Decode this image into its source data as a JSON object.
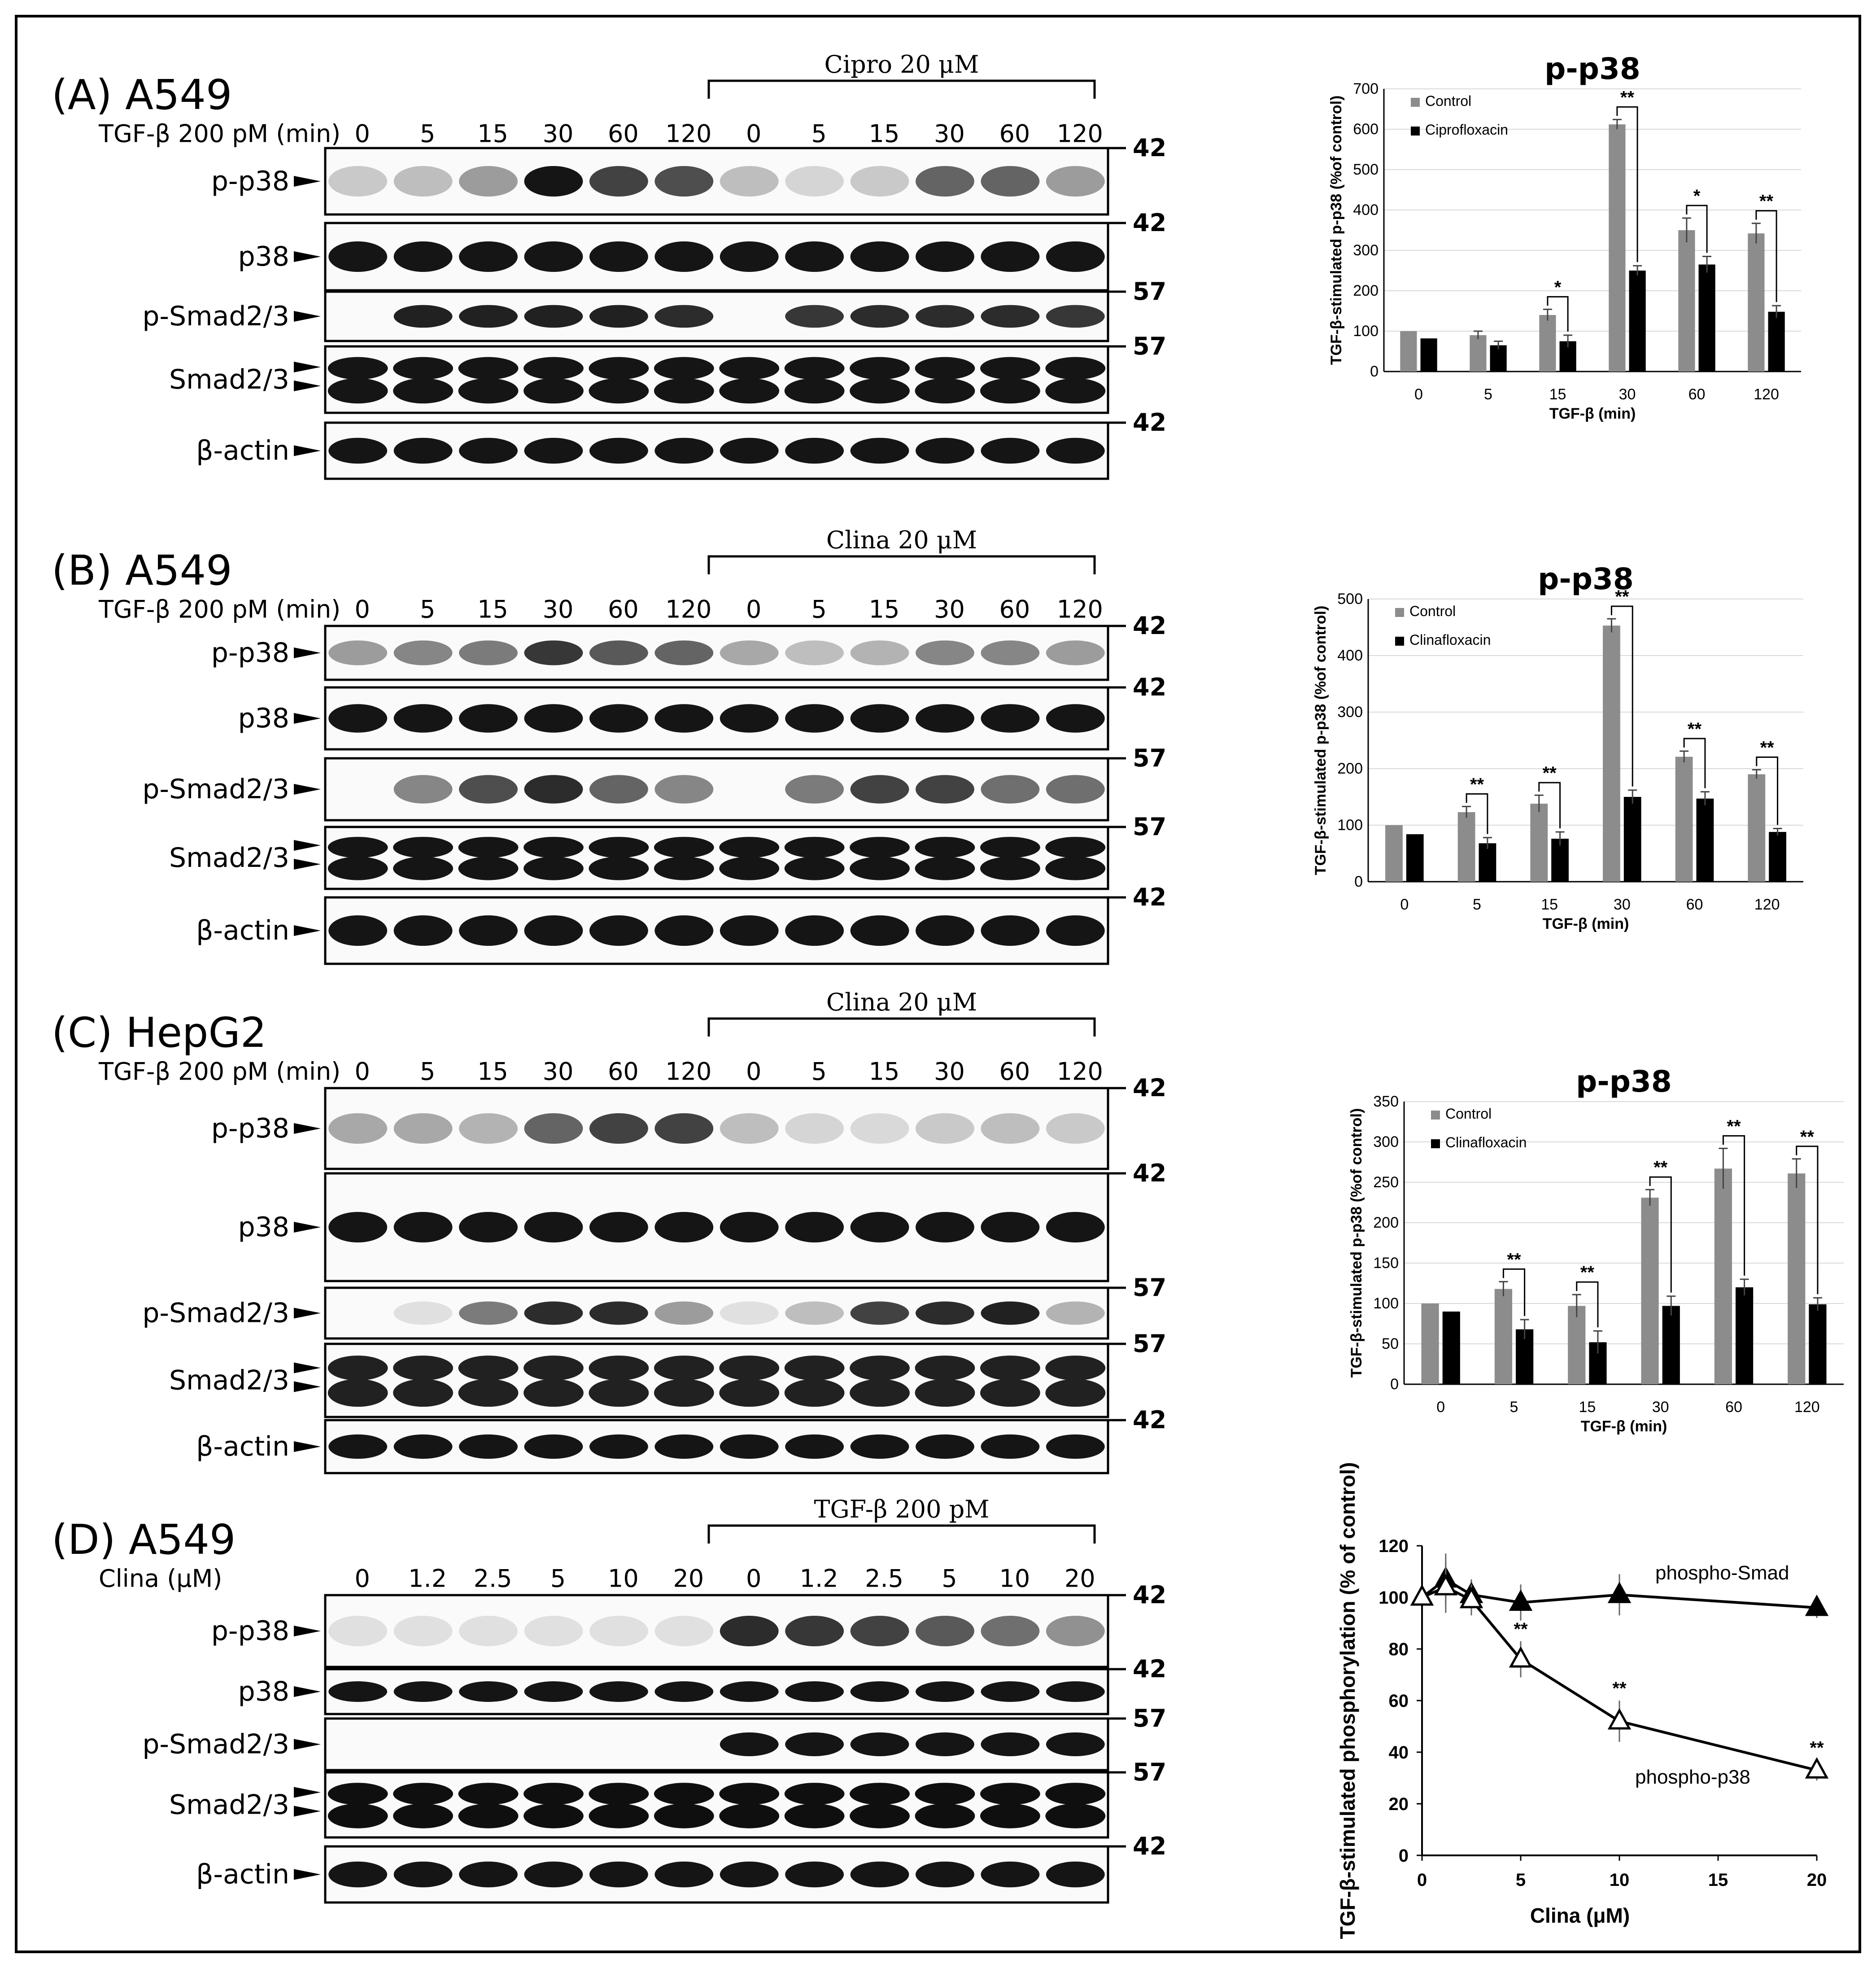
{
  "panels": [
    {
      "label": "(A) A549",
      "treatment_bracket": "Cipro 20 μM",
      "row_header": "TGF-β 200 pM (min)",
      "lanes": [
        "0",
        "5",
        "15",
        "30",
        "60",
        "120",
        "0",
        "5",
        "15",
        "30",
        "60",
        "120"
      ],
      "blots": [
        {
          "label": "p-p38",
          "mw": "42",
          "intensity": [
            0.15,
            0.2,
            0.35,
            0.95,
            0.75,
            0.7,
            0.2,
            0.1,
            0.15,
            0.6,
            0.6,
            0.35
          ]
        },
        {
          "label": "p38",
          "mw": "42",
          "intensity": [
            0.95,
            0.95,
            0.95,
            0.95,
            0.95,
            0.95,
            0.95,
            0.95,
            0.95,
            0.95,
            0.95,
            0.95
          ]
        },
        {
          "label": "p-Smad2/3",
          "mw": "57",
          "intensity": [
            0.0,
            0.9,
            0.9,
            0.9,
            0.9,
            0.85,
            0.0,
            0.8,
            0.85,
            0.85,
            0.85,
            0.8
          ]
        },
        {
          "label": "Smad2/3",
          "mw": "57",
          "intensity": [
            0.95,
            0.95,
            0.95,
            0.95,
            0.95,
            0.95,
            0.95,
            0.95,
            0.95,
            0.95,
            0.95,
            0.95
          ]
        },
        {
          "label": "β-actin",
          "mw": "42",
          "intensity": [
            0.95,
            0.95,
            0.95,
            0.95,
            0.95,
            0.95,
            0.95,
            0.95,
            0.95,
            0.95,
            0.95,
            0.95
          ]
        }
      ]
    },
    {
      "label": "(B) A549",
      "treatment_bracket": "Clina 20 μM",
      "row_header": "TGF-β 200 pM (min)",
      "lanes": [
        "0",
        "5",
        "15",
        "30",
        "60",
        "120",
        "0",
        "5",
        "15",
        "30",
        "60",
        "120"
      ],
      "blots": [
        {
          "label": "p-p38",
          "mw": "42",
          "intensity": [
            0.35,
            0.45,
            0.5,
            0.8,
            0.65,
            0.6,
            0.3,
            0.2,
            0.25,
            0.45,
            0.45,
            0.35
          ]
        },
        {
          "label": "p38",
          "mw": "42",
          "intensity": [
            0.95,
            0.95,
            0.95,
            0.95,
            0.95,
            0.95,
            0.95,
            0.95,
            0.95,
            0.95,
            0.95,
            0.95
          ]
        },
        {
          "label": "p-Smad2/3",
          "mw": "57",
          "intensity": [
            0.0,
            0.45,
            0.7,
            0.85,
            0.6,
            0.45,
            0.0,
            0.5,
            0.75,
            0.75,
            0.55,
            0.55
          ]
        },
        {
          "label": "Smad2/3",
          "mw": "57",
          "intensity": [
            0.95,
            0.95,
            0.95,
            0.95,
            0.95,
            0.95,
            0.95,
            0.95,
            0.95,
            0.95,
            0.95,
            0.95
          ]
        },
        {
          "label": "β-actin",
          "mw": "42",
          "intensity": [
            0.95,
            0.95,
            0.95,
            0.95,
            0.95,
            0.95,
            0.95,
            0.95,
            0.95,
            0.95,
            0.95,
            0.95
          ]
        }
      ]
    },
    {
      "label": "(C) HepG2",
      "treatment_bracket": "Clina 20 μM",
      "row_header": "TGF-β 200 pM (min)",
      "lanes": [
        "0",
        "5",
        "15",
        "30",
        "60",
        "120",
        "0",
        "5",
        "15",
        "30",
        "60",
        "120"
      ],
      "blots": [
        {
          "label": "p-p38",
          "mw": "42",
          "intensity": [
            0.3,
            0.3,
            0.25,
            0.6,
            0.75,
            0.75,
            0.2,
            0.1,
            0.08,
            0.15,
            0.2,
            0.15
          ]
        },
        {
          "label": "p38",
          "mw": "42",
          "intensity": [
            0.95,
            0.95,
            0.95,
            0.95,
            0.95,
            0.95,
            0.95,
            0.95,
            0.95,
            0.95,
            0.95,
            0.95
          ]
        },
        {
          "label": "p-Smad2/3",
          "mw": "57",
          "intensity": [
            0.0,
            0.05,
            0.5,
            0.85,
            0.85,
            0.35,
            0.05,
            0.2,
            0.75,
            0.85,
            0.9,
            0.25
          ]
        },
        {
          "label": "Smad2/3",
          "mw": "57",
          "intensity": [
            0.9,
            0.9,
            0.9,
            0.9,
            0.9,
            0.9,
            0.9,
            0.9,
            0.9,
            0.9,
            0.9,
            0.9
          ]
        },
        {
          "label": "β-actin",
          "mw": "42",
          "intensity": [
            0.95,
            0.95,
            0.95,
            0.95,
            0.95,
            0.95,
            0.95,
            0.95,
            0.95,
            0.95,
            0.95,
            0.95
          ]
        }
      ]
    },
    {
      "label": "(D) A549",
      "treatment_bracket": "TGF-β 200 pM",
      "row_header": "Clina (μM)",
      "lanes": [
        "0",
        "1.2",
        "2.5",
        "5",
        "10",
        "20",
        "0",
        "1.2",
        "2.5",
        "5",
        "10",
        "20"
      ],
      "blots": [
        {
          "label": "p-p38",
          "mw": "42",
          "intensity": [
            0.05,
            0.05,
            0.05,
            0.05,
            0.05,
            0.05,
            0.85,
            0.8,
            0.75,
            0.65,
            0.55,
            0.4
          ]
        },
        {
          "label": "p38",
          "mw": "42",
          "intensity": [
            0.95,
            0.95,
            0.95,
            0.95,
            0.95,
            0.95,
            0.95,
            0.95,
            0.95,
            0.95,
            0.95,
            0.95
          ]
        },
        {
          "label": "p-Smad2/3",
          "mw": "57",
          "intensity": [
            0.0,
            0.0,
            0.0,
            0.0,
            0.0,
            0.0,
            0.95,
            0.95,
            0.95,
            0.95,
            0.95,
            0.95
          ]
        },
        {
          "label": "Smad2/3",
          "mw": "57",
          "intensity": [
            0.98,
            0.98,
            0.98,
            0.98,
            0.98,
            0.98,
            0.98,
            0.98,
            0.98,
            0.98,
            0.98,
            0.98
          ]
        },
        {
          "label": "β-actin",
          "mw": "42",
          "intensity": [
            0.95,
            0.95,
            0.95,
            0.95,
            0.95,
            0.95,
            0.95,
            0.95,
            0.95,
            0.95,
            0.95,
            0.95
          ]
        }
      ]
    }
  ],
  "chart_data": [
    {
      "type": "bar",
      "title": "p-p38",
      "xlabel": "TGF-β (min)",
      "ylabel": "TGF-β-stimulated p-p38 (%of control)",
      "ylim": [
        0,
        700
      ],
      "yticks": [
        0,
        100,
        200,
        300,
        400,
        500,
        600,
        700
      ],
      "categories": [
        "0",
        "5",
        "15",
        "30",
        "60",
        "120"
      ],
      "series": [
        {
          "name": "Control",
          "color": "#8c8c8c",
          "values": [
            100,
            90,
            140,
            612,
            350,
            342
          ],
          "errors": [
            0,
            10,
            14,
            12,
            30,
            25
          ]
        },
        {
          "name": "Ciprofloxacin",
          "color": "#000000",
          "values": [
            82,
            65,
            75,
            250,
            265,
            148
          ],
          "errors": [
            0,
            10,
            15,
            12,
            20,
            15
          ]
        }
      ],
      "significance": [
        "",
        "",
        "*",
        "**",
        "*",
        "**"
      ],
      "legend": "top-left",
      "grid": true
    },
    {
      "type": "bar",
      "title": "p-p38",
      "xlabel": "TGF-β (min)",
      "ylabel": "TGF-β-stimulated p-p38 (%of control)",
      "ylim": [
        0,
        500
      ],
      "yticks": [
        0,
        100,
        200,
        300,
        400,
        500
      ],
      "categories": [
        "0",
        "5",
        "15",
        "30",
        "60",
        "120"
      ],
      "series": [
        {
          "name": "Control",
          "color": "#8c8c8c",
          "values": [
            100,
            123,
            138,
            453,
            221,
            190
          ],
          "errors": [
            0,
            10,
            15,
            12,
            10,
            8
          ]
        },
        {
          "name": "Clinafloxacin",
          "color": "#000000",
          "values": [
            84,
            68,
            76,
            150,
            147,
            88
          ],
          "errors": [
            0,
            10,
            12,
            12,
            12,
            6
          ]
        }
      ],
      "significance": [
        "",
        "**",
        "**",
        "**",
        "**",
        "**"
      ],
      "legend": "top-left",
      "grid": true
    },
    {
      "type": "bar",
      "title": "p-p38",
      "xlabel": "TGF-β (min)",
      "ylabel": "TGF-β-stimulated p-p38 (%of control)",
      "ylim": [
        0,
        350
      ],
      "yticks": [
        0,
        50,
        100,
        150,
        200,
        250,
        300,
        350
      ],
      "categories": [
        "0",
        "5",
        "15",
        "30",
        "60",
        "120"
      ],
      "series": [
        {
          "name": "Control",
          "color": "#8c8c8c",
          "values": [
            100,
            118,
            97,
            231,
            267,
            261
          ],
          "errors": [
            0,
            9,
            14,
            10,
            25,
            18
          ]
        },
        {
          "name": "Clinafloxacin",
          "color": "#000000",
          "values": [
            90,
            68,
            52,
            97,
            120,
            99
          ],
          "errors": [
            0,
            12,
            14,
            12,
            10,
            8
          ]
        }
      ],
      "significance": [
        "",
        "**",
        "**",
        "**",
        "**",
        "**"
      ],
      "legend": "top-left",
      "grid": true
    },
    {
      "type": "line",
      "title": "",
      "xlabel": "Clina (μM)",
      "ylabel": "TGF-β-stimulated phosphorylation (% of control)",
      "xlim": [
        0,
        20
      ],
      "ylim": [
        0,
        120
      ],
      "xticks": [
        0,
        5,
        10,
        15,
        20
      ],
      "yticks": [
        0,
        20,
        40,
        60,
        80,
        100,
        120
      ],
      "x": [
        0,
        1.2,
        2.5,
        5,
        10,
        20
      ],
      "series": [
        {
          "name": "phospho-Smad",
          "marker": "filled-triangle",
          "values": [
            100,
            107,
            101,
            98,
            101,
            96
          ],
          "errors": [
            0,
            10,
            6,
            7,
            8,
            4
          ],
          "significance": [
            "",
            "",
            "",
            "",
            "",
            ""
          ]
        },
        {
          "name": "phospho-p38",
          "marker": "open-triangle",
          "values": [
            100,
            104,
            99,
            76,
            52,
            33
          ],
          "errors": [
            0,
            10,
            6,
            7,
            8,
            4
          ],
          "significance": [
            "",
            "",
            "",
            "**",
            "**",
            "**"
          ]
        }
      ],
      "grid": false
    }
  ]
}
